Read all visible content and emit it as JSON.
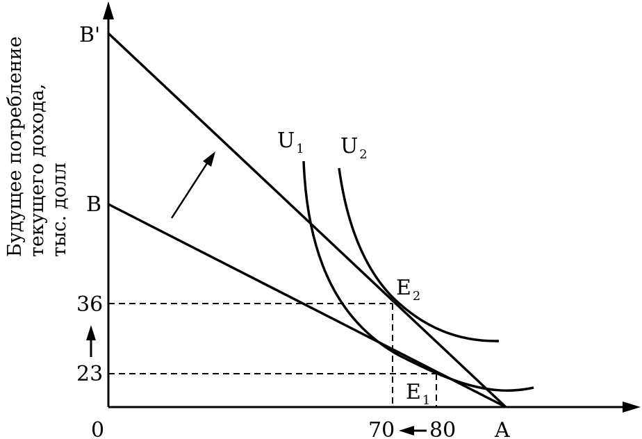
{
  "y_axis_title": {
    "line1": "Будущее потребление",
    "line2": "текущего дохода,",
    "line3": "тыс. долл"
  },
  "labels": {
    "origin": "0",
    "point_a": "A",
    "point_b": "B",
    "point_b_prime": "B'",
    "y_tick_36": "36",
    "y_tick_23": "23",
    "x_tick_70": "70",
    "x_tick_80": "80",
    "curve_u1": "U",
    "curve_u1_sub": "1",
    "curve_u2": "U",
    "curve_u2_sub": "2",
    "point_e2": "E",
    "point_e2_sub": "2",
    "point_e1": "E",
    "point_e1_sub": "1"
  }
}
